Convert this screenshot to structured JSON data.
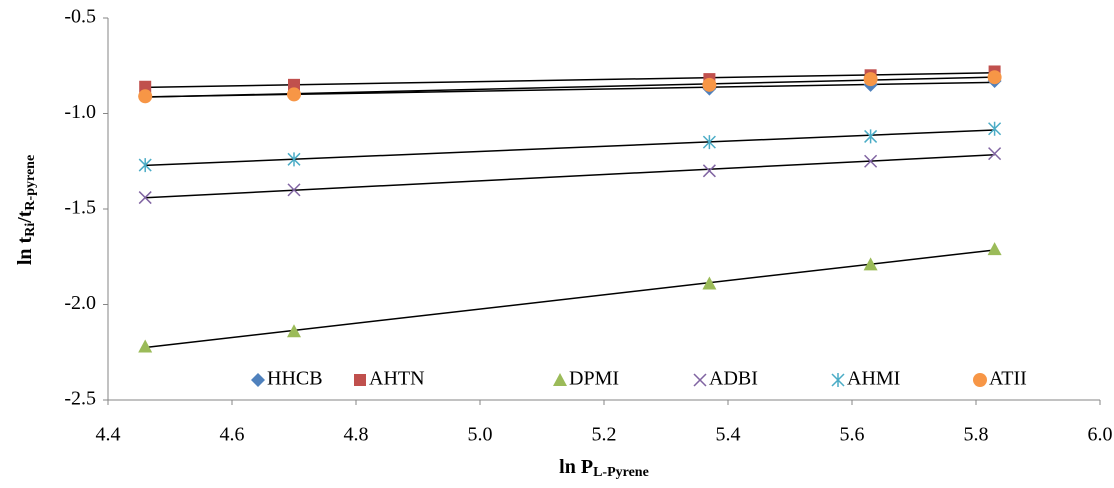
{
  "chart_data": {
    "type": "scatter",
    "x_label_parts": [
      "ln P",
      "L-Pyrene"
    ],
    "y_label_parts": [
      "ln t",
      "Ri",
      "/t",
      "R-pyrene"
    ],
    "x": [
      4.46,
      4.7,
      5.37,
      5.63,
      5.83
    ],
    "series": [
      {
        "name": "HHCB",
        "color": "#4f81bd",
        "marker": "diamond",
        "values": [
          -0.91,
          -0.9,
          -0.87,
          -0.85,
          -0.83
        ]
      },
      {
        "name": "AHTN",
        "color": "#c0504d",
        "marker": "square",
        "values": [
          -0.86,
          -0.85,
          -0.82,
          -0.8,
          -0.78
        ]
      },
      {
        "name": "DPMI",
        "color": "#9bbb59",
        "marker": "triangle",
        "values": [
          -2.22,
          -2.14,
          -1.89,
          -1.79,
          -1.71
        ]
      },
      {
        "name": "ADBI",
        "color": "#8064a2",
        "marker": "x",
        "values": [
          -1.44,
          -1.4,
          -1.3,
          -1.25,
          -1.21
        ]
      },
      {
        "name": "AHMI",
        "color": "#4bacc6",
        "marker": "star",
        "values": [
          -1.27,
          -1.24,
          -1.15,
          -1.12,
          -1.08
        ]
      },
      {
        "name": "ATII",
        "color": "#f79646",
        "marker": "circle",
        "values": [
          -0.91,
          -0.9,
          -0.85,
          -0.82,
          -0.81
        ]
      }
    ],
    "trendline": true,
    "xlim": [
      4.4,
      6.0
    ],
    "xticks": [
      4.4,
      4.6,
      4.8,
      {
        "value": 5.0,
        "label": "5.0"
      },
      5.2,
      5.4,
      5.6,
      5.8,
      {
        "value": 6.0,
        "label": "6.0"
      }
    ],
    "ylim": [
      -2.5,
      -0.5
    ],
    "yticks": [
      -0.5,
      {
        "value": -1.0,
        "label": "-1.0"
      },
      -1.5,
      {
        "value": -2.0,
        "label": "-2.0"
      },
      -2.5
    ],
    "legend": "bottom"
  }
}
